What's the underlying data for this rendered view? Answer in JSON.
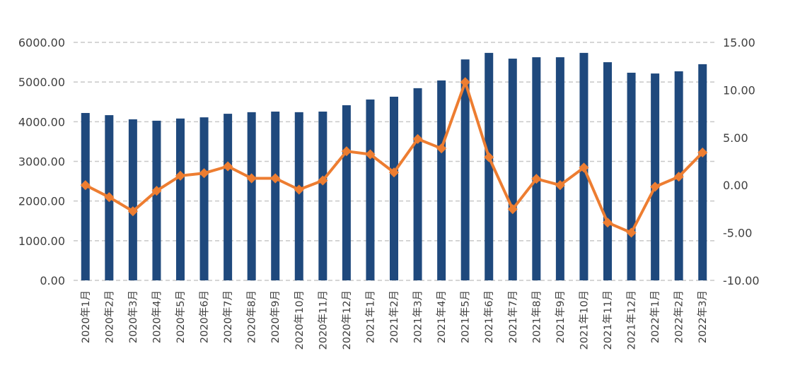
{
  "chart_data": {
    "type": "bar+line",
    "title": "",
    "xlabel": "",
    "ylabel": "",
    "grid": true,
    "legend": "none",
    "categories": [
      "2020年1月",
      "2020年2月",
      "2020年3月",
      "2020年4月",
      "2020年5月",
      "2020年6月",
      "2020年7月",
      "2020年8月",
      "2020年9月",
      "2020年10月",
      "2020年11月",
      "2020年12月",
      "2021年1月",
      "2021年2月",
      "2021年3月",
      "2021年4月",
      "2021年5月",
      "2021年6月",
      "2021年7月",
      "2021年8月",
      "2021年9月",
      "2021年10月",
      "2021年11月",
      "2021年12月",
      "2022年1月",
      "2022年2月",
      "2022年3月"
    ],
    "series": [
      {
        "name": "bars",
        "type": "bar",
        "axis": "left",
        "color": "#1f497d",
        "values": [
          4220,
          4165,
          4060,
          4025,
          4080,
          4110,
          4200,
          4240,
          4255,
          4240,
          4255,
          4415,
          4560,
          4630,
          4845,
          5040,
          5570,
          5735,
          5590,
          5625,
          5625,
          5735,
          5500,
          5235,
          5215,
          5270,
          5450
        ]
      },
      {
        "name": "line",
        "type": "line",
        "axis": "right",
        "color": "#ed7d31",
        "values": [
          0.0,
          -1.26,
          -2.74,
          -0.59,
          0.99,
          1.26,
          1.98,
          0.72,
          0.72,
          -0.47,
          0.49,
          3.56,
          3.24,
          1.34,
          4.85,
          3.86,
          10.82,
          2.94,
          -2.52,
          0.67,
          0.0,
          1.85,
          -3.93,
          -4.99,
          -0.17,
          0.89,
          3.43
        ]
      }
    ],
    "y_left": {
      "ylim": [
        0,
        6000
      ],
      "ticks": [
        0,
        1000,
        2000,
        3000,
        4000,
        5000,
        6000
      ],
      "tick_labels": [
        "0.00",
        "1000.00",
        "2000.00",
        "3000.00",
        "4000.00",
        "5000.00",
        "6000.00"
      ]
    },
    "y_right": {
      "ylim": [
        -10,
        15
      ],
      "ticks": [
        -10,
        -5,
        0,
        5,
        10,
        15
      ],
      "tick_labels": [
        "-10.00",
        "-5.00",
        "0.00",
        "5.00",
        "10.00",
        "15.00"
      ]
    },
    "grid_color": "#c8c8c8",
    "text_color": "#404040"
  }
}
